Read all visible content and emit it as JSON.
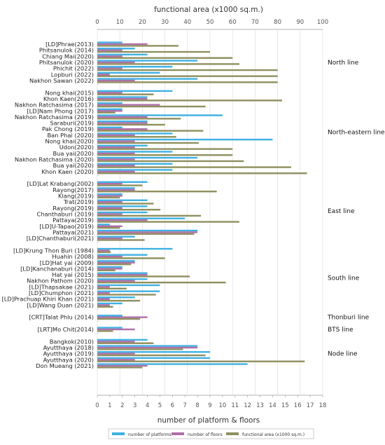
{
  "chart_data": {
    "type": "bar",
    "orientation": "horizontal",
    "top_axis": {
      "label": "functional area (x1000 sq.m.)",
      "range": [
        0,
        100
      ],
      "ticks": [
        "0",
        "10",
        "20",
        "30",
        "40",
        "50",
        "60",
        "70",
        "80",
        "90",
        "100"
      ]
    },
    "bottom_axis": {
      "label": "number of platform & floors",
      "range": [
        0,
        18
      ],
      "ticks": [
        "0",
        "1",
        "2",
        "3",
        "4",
        "5",
        "6",
        "7",
        "8",
        "9",
        "10",
        "11",
        "12",
        "13",
        "14",
        "15",
        "16",
        "17",
        "18"
      ]
    },
    "colors": {
      "platforms": "#3fb1e3",
      "floors": "#b06fa9",
      "area": "#8f8f5f"
    },
    "legend": {
      "placement": "bottom",
      "items": [
        {
          "key": "platforms",
          "label": "number of platforms"
        },
        {
          "key": "floors",
          "label": "number of floors"
        },
        {
          "key": "area",
          "label": "functional area (x1000 sq.m.)"
        }
      ]
    },
    "groups": [
      {
        "name": "North line",
        "rows": [
          {
            "label": "[LD]Phrae(2013)",
            "platforms": 2,
            "floors": 4,
            "area": 36
          },
          {
            "label": "Phitsanulok (2014)",
            "platforms": 3,
            "floors": 2,
            "area": 50
          },
          {
            "label": "Chiang Mai(2020)",
            "platforms": 4,
            "floors": 2,
            "area": 60
          },
          {
            "label": "Phitsanulok (2020)",
            "platforms": 8,
            "floors": 3,
            "area": 63
          },
          {
            "label": "Phichit (2022)",
            "platforms": 6,
            "floors": 2,
            "area": 80
          },
          {
            "label": "Lopburi (2022)",
            "platforms": 5,
            "floors": 1,
            "area": 80
          },
          {
            "label": "Nakhon Sawan (2022)",
            "platforms": 8,
            "floors": 3,
            "area": 80
          }
        ]
      },
      {
        "name": "North-eastern line",
        "rows": [
          {
            "label": "Nong khai(2015)",
            "platforms": 6,
            "floors": 2,
            "area": 25
          },
          {
            "label": "Khon Kaen(2016)",
            "platforms": 4,
            "floors": 4,
            "area": 82
          },
          {
            "label": "Nakhon Ratchasima (2017)",
            "platforms": 2,
            "floors": 5,
            "area": 48
          },
          {
            "label": "[LD]Nam Phong (2017)",
            "platforms": 2,
            "floors": 2,
            "area": 8
          },
          {
            "label": "Nakhon Ratchasima (2019)",
            "platforms": 10,
            "floors": 4,
            "area": 37
          },
          {
            "label": "Saraburi(2019)",
            "platforms": 4,
            "floors": 4,
            "area": 30
          },
          {
            "label": "Pak Chong (2019)",
            "platforms": 2,
            "floors": 4,
            "area": 47
          },
          {
            "label": "Ban Phai (2020)",
            "platforms": 6,
            "floors": 3,
            "area": 35
          },
          {
            "label": "Nong khai(2020)",
            "platforms": 14,
            "floors": 3,
            "area": 45
          },
          {
            "label": "Udon(2020)",
            "platforms": 4,
            "floors": 3,
            "area": 60
          },
          {
            "label": "Bua yai(2020)",
            "platforms": 6,
            "floors": 3,
            "area": 60
          },
          {
            "label": "Nakhon Ratchasima (2020)",
            "platforms": 8,
            "floors": 3,
            "area": 65
          },
          {
            "label": "Bua yai(2020)",
            "platforms": 6,
            "floors": 3,
            "area": 86
          },
          {
            "label": "Khon Kaen (2020)",
            "platforms": 6,
            "floors": 3,
            "area": 93
          }
        ]
      },
      {
        "name": "East line",
        "rows": [
          {
            "label": "[LD]Lat Krabang(2002)",
            "platforms": 4,
            "floors": 2,
            "area": 20
          },
          {
            "label": "Rayong(2017)",
            "platforms": 3,
            "floors": 3,
            "area": 53
          },
          {
            "label": "Klang(2019)",
            "platforms": 2,
            "floors": 2,
            "area": 10
          },
          {
            "label": "Trat(2019)",
            "platforms": 4,
            "floors": 2,
            "area": 25
          },
          {
            "label": "Rayong(2019)",
            "platforms": 4,
            "floors": 2,
            "area": 28
          },
          {
            "label": "Chanthaburi (2019)",
            "platforms": 4,
            "floors": 2,
            "area": 46
          },
          {
            "label": "Pattaya(2019)",
            "platforms": 7,
            "floors": 4,
            "area": 63
          },
          {
            "label": "[LD]U-Tapao(2019)",
            "platforms": 1,
            "floors": 2,
            "area": 10
          },
          {
            "label": "Pattaya(2021)",
            "platforms": 8,
            "floors": 8,
            "area": 43
          },
          {
            "label": "[LD]Chanthaburi(2021)",
            "platforms": 3,
            "floors": 2,
            "area": 21
          }
        ]
      },
      {
        "name": "South line",
        "rows": [
          {
            "label": "[LD]Krung Thon Buri (1984)",
            "platforms": 6,
            "floors": 1,
            "area": 6
          },
          {
            "label": "Huahin (2008)",
            "platforms": 4,
            "floors": 2,
            "area": 30
          },
          {
            "label": "[LD]Hat yai (2009)",
            "platforms": 3,
            "floors": 3,
            "area": 15
          },
          {
            "label": "[LD]Kanchanaburi (2014)",
            "platforms": 2,
            "floors": 2,
            "area": 8
          },
          {
            "label": "Hat yai (2015)",
            "platforms": 4,
            "floors": 4,
            "area": 41
          },
          {
            "label": "Nakhon Pathom (2020)",
            "platforms": 4,
            "floors": 3,
            "area": 57
          },
          {
            "label": "[LD]Thapsakae (2021)",
            "platforms": 5,
            "floors": 1,
            "area": 13
          },
          {
            "label": "[LD]Chumphon (2021)",
            "platforms": 5,
            "floors": 1,
            "area": 26
          },
          {
            "label": "[LD]Prachuap Khiri Khan (2021)",
            "platforms": 3,
            "floors": 1,
            "area": 19
          },
          {
            "label": "[LD]Wang Duan (2021)",
            "platforms": 2,
            "floors": 1,
            "area": 7
          }
        ]
      },
      {
        "name": "Thonburi line",
        "rows": [
          {
            "label": "[CRT]Talat Phlu (2014)",
            "platforms": 2,
            "floors": 4,
            "area": 19
          }
        ]
      },
      {
        "name": "BTS line",
        "rows": [
          {
            "label": "[LRT]Mo Chit(2014)",
            "platforms": 2,
            "floors": 3,
            "area": 7
          }
        ]
      },
      {
        "name": "Node line",
        "rows": [
          {
            "label": "Bangkok(2010)",
            "platforms": 4,
            "floors": 3,
            "area": 25
          },
          {
            "label": "Ayutthaya (2018)",
            "platforms": 8,
            "floors": 8,
            "area": 38
          },
          {
            "label": "Ayutthaya (2019)",
            "platforms": 9,
            "floors": 3,
            "area": 48
          },
          {
            "label": "Ayutthaya (2020)",
            "platforms": 9,
            "floors": 3,
            "area": 92
          },
          {
            "label": "Don Mueang (2021)",
            "platforms": 12,
            "floors": 4,
            "area": 20
          }
        ]
      }
    ]
  }
}
